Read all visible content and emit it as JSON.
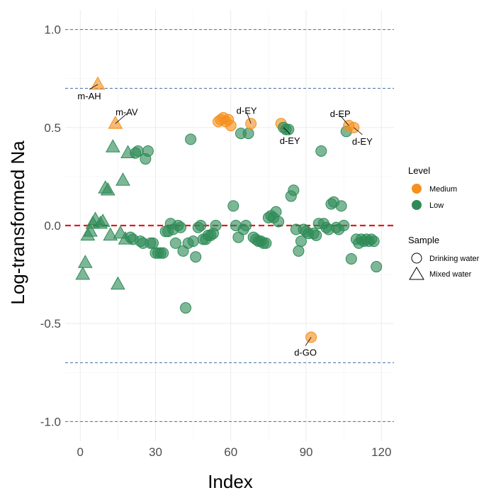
{
  "chart_data": {
    "type": "scatter",
    "title": "",
    "xlabel": "Index",
    "ylabel": "Log-transformed Na",
    "xlim": [
      -6,
      125
    ],
    "ylim": [
      -1.1,
      1.1
    ],
    "x_ticks": [
      0,
      30,
      60,
      90,
      120
    ],
    "x_tick_labels": [
      "0",
      "30",
      "60",
      "90",
      "120"
    ],
    "y_ticks": [
      -1.0,
      -0.5,
      0.0,
      0.5,
      1.0
    ],
    "y_tick_labels": [
      "-1.0",
      "-0.5",
      "0.0",
      "0.5",
      "1.0"
    ],
    "grid": true,
    "reference_lines": {
      "zero": {
        "y": 0.0,
        "color": "#e41a1c",
        "style": "dashed"
      },
      "thresholds": {
        "y": [
          1.0,
          0.7,
          -0.7,
          -1.0
        ],
        "color": "#4a6fa5",
        "style": "dashed"
      }
    },
    "legend_level": {
      "title": "Level",
      "placement": "right",
      "items": [
        {
          "label": "Medium",
          "color": "#f5901e"
        },
        {
          "label": "Low",
          "color": "#2e8b57"
        }
      ]
    },
    "legend_sample": {
      "title": "Sample",
      "placement": "right",
      "items": [
        {
          "label": "Drinking water",
          "shape": "circle"
        },
        {
          "label": "Mixed water",
          "shape": "triangle"
        }
      ]
    },
    "colors": {
      "Medium": "#f5901e",
      "Low": "#2e8b57"
    },
    "points": [
      {
        "x": 1,
        "y": -0.25,
        "level": "Low",
        "sample": "Mixed water"
      },
      {
        "x": 2,
        "y": -0.19,
        "level": "Low",
        "sample": "Mixed water"
      },
      {
        "x": 3,
        "y": -0.05,
        "level": "Low",
        "sample": "Mixed water"
      },
      {
        "x": 4,
        "y": -0.03,
        "level": "Low",
        "sample": "Mixed water"
      },
      {
        "x": 5,
        "y": 0.01,
        "level": "Low",
        "sample": "Mixed water"
      },
      {
        "x": 6,
        "y": 0.03,
        "level": "Low",
        "sample": "Mixed water"
      },
      {
        "x": 7,
        "y": 0.72,
        "level": "Medium",
        "sample": "Mixed water"
      },
      {
        "x": 8,
        "y": 0.01,
        "level": "Low",
        "sample": "Mixed water"
      },
      {
        "x": 9,
        "y": 0.02,
        "level": "Low",
        "sample": "Mixed water"
      },
      {
        "x": 10,
        "y": 0.19,
        "level": "Low",
        "sample": "Mixed water"
      },
      {
        "x": 11,
        "y": 0.18,
        "level": "Low",
        "sample": "Mixed water"
      },
      {
        "x": 12,
        "y": -0.05,
        "level": "Low",
        "sample": "Mixed water"
      },
      {
        "x": 13,
        "y": 0.4,
        "level": "Low",
        "sample": "Mixed water"
      },
      {
        "x": 14,
        "y": 0.52,
        "level": "Medium",
        "sample": "Mixed water"
      },
      {
        "x": 15,
        "y": -0.3,
        "level": "Low",
        "sample": "Mixed water"
      },
      {
        "x": 16,
        "y": -0.04,
        "level": "Low",
        "sample": "Mixed water"
      },
      {
        "x": 17,
        "y": 0.23,
        "level": "Low",
        "sample": "Mixed water"
      },
      {
        "x": 18,
        "y": -0.07,
        "level": "Low",
        "sample": "Mixed water"
      },
      {
        "x": 19,
        "y": 0.37,
        "level": "Low",
        "sample": "Mixed water"
      },
      {
        "x": 20,
        "y": -0.06,
        "level": "Low",
        "sample": "Drinking water"
      },
      {
        "x": 21,
        "y": -0.07,
        "level": "Low",
        "sample": "Drinking water"
      },
      {
        "x": 22,
        "y": 0.37,
        "level": "Low",
        "sample": "Drinking water"
      },
      {
        "x": 23,
        "y": 0.38,
        "level": "Low",
        "sample": "Drinking water"
      },
      {
        "x": 24,
        "y": -0.08,
        "level": "Low",
        "sample": "Drinking water"
      },
      {
        "x": 25,
        "y": -0.09,
        "level": "Low",
        "sample": "Drinking water"
      },
      {
        "x": 26,
        "y": 0.34,
        "level": "Low",
        "sample": "Drinking water"
      },
      {
        "x": 27,
        "y": 0.38,
        "level": "Low",
        "sample": "Drinking water"
      },
      {
        "x": 28,
        "y": -0.09,
        "level": "Low",
        "sample": "Drinking water"
      },
      {
        "x": 29,
        "y": -0.09,
        "level": "Low",
        "sample": "Drinking water"
      },
      {
        "x": 30,
        "y": -0.14,
        "level": "Low",
        "sample": "Drinking water"
      },
      {
        "x": 31,
        "y": -0.14,
        "level": "Low",
        "sample": "Drinking water"
      },
      {
        "x": 32,
        "y": -0.14,
        "level": "Low",
        "sample": "Drinking water"
      },
      {
        "x": 33,
        "y": -0.14,
        "level": "Low",
        "sample": "Drinking water"
      },
      {
        "x": 34,
        "y": -0.03,
        "level": "Low",
        "sample": "Drinking water"
      },
      {
        "x": 35,
        "y": -0.03,
        "level": "Low",
        "sample": "Drinking water"
      },
      {
        "x": 36,
        "y": 0.01,
        "level": "Low",
        "sample": "Drinking water"
      },
      {
        "x": 37,
        "y": -0.02,
        "level": "Low",
        "sample": "Drinking water"
      },
      {
        "x": 38,
        "y": -0.09,
        "level": "Low",
        "sample": "Drinking water"
      },
      {
        "x": 39,
        "y": 0.0,
        "level": "Low",
        "sample": "Drinking water"
      },
      {
        "x": 40,
        "y": -0.01,
        "level": "Low",
        "sample": "Drinking water"
      },
      {
        "x": 41,
        "y": -0.13,
        "level": "Low",
        "sample": "Drinking water"
      },
      {
        "x": 42,
        "y": -0.42,
        "level": "Low",
        "sample": "Drinking water"
      },
      {
        "x": 43,
        "y": -0.09,
        "level": "Low",
        "sample": "Drinking water"
      },
      {
        "x": 44,
        "y": 0.44,
        "level": "Low",
        "sample": "Drinking water"
      },
      {
        "x": 45,
        "y": -0.08,
        "level": "Low",
        "sample": "Drinking water"
      },
      {
        "x": 46,
        "y": -0.16,
        "level": "Low",
        "sample": "Drinking water"
      },
      {
        "x": 47,
        "y": -0.01,
        "level": "Low",
        "sample": "Drinking water"
      },
      {
        "x": 48,
        "y": 0.0,
        "level": "Low",
        "sample": "Drinking water"
      },
      {
        "x": 49,
        "y": -0.07,
        "level": "Low",
        "sample": "Drinking water"
      },
      {
        "x": 50,
        "y": -0.07,
        "level": "Low",
        "sample": "Drinking water"
      },
      {
        "x": 51,
        "y": -0.05,
        "level": "Low",
        "sample": "Drinking water"
      },
      {
        "x": 52,
        "y": -0.05,
        "level": "Low",
        "sample": "Drinking water"
      },
      {
        "x": 53,
        "y": -0.04,
        "level": "Low",
        "sample": "Drinking water"
      },
      {
        "x": 54,
        "y": 0.0,
        "level": "Low",
        "sample": "Drinking water"
      },
      {
        "x": 55,
        "y": 0.53,
        "level": "Medium",
        "sample": "Drinking water"
      },
      {
        "x": 56,
        "y": 0.54,
        "level": "Medium",
        "sample": "Drinking water"
      },
      {
        "x": 57,
        "y": 0.55,
        "level": "Medium",
        "sample": "Drinking water"
      },
      {
        "x": 58,
        "y": 0.53,
        "level": "Medium",
        "sample": "Drinking water"
      },
      {
        "x": 59,
        "y": 0.54,
        "level": "Medium",
        "sample": "Drinking water"
      },
      {
        "x": 60,
        "y": 0.51,
        "level": "Medium",
        "sample": "Drinking water"
      },
      {
        "x": 61,
        "y": 0.1,
        "level": "Low",
        "sample": "Drinking water"
      },
      {
        "x": 62,
        "y": 0.0,
        "level": "Low",
        "sample": "Drinking water"
      },
      {
        "x": 63,
        "y": -0.06,
        "level": "Low",
        "sample": "Drinking water"
      },
      {
        "x": 64,
        "y": 0.47,
        "level": "Low",
        "sample": "Drinking water"
      },
      {
        "x": 65,
        "y": -0.02,
        "level": "Low",
        "sample": "Drinking water"
      },
      {
        "x": 66,
        "y": 0.0,
        "level": "Low",
        "sample": "Drinking water"
      },
      {
        "x": 67,
        "y": 0.47,
        "level": "Low",
        "sample": "Drinking water"
      },
      {
        "x": 68,
        "y": 0.52,
        "level": "Medium",
        "sample": "Drinking water"
      },
      {
        "x": 69,
        "y": -0.06,
        "level": "Low",
        "sample": "Drinking water"
      },
      {
        "x": 70,
        "y": -0.07,
        "level": "Low",
        "sample": "Drinking water"
      },
      {
        "x": 71,
        "y": -0.08,
        "level": "Low",
        "sample": "Drinking water"
      },
      {
        "x": 72,
        "y": -0.08,
        "level": "Low",
        "sample": "Drinking water"
      },
      {
        "x": 73,
        "y": -0.09,
        "level": "Low",
        "sample": "Drinking water"
      },
      {
        "x": 74,
        "y": -0.09,
        "level": "Low",
        "sample": "Drinking water"
      },
      {
        "x": 75,
        "y": 0.04,
        "level": "Low",
        "sample": "Drinking water"
      },
      {
        "x": 76,
        "y": 0.05,
        "level": "Low",
        "sample": "Drinking water"
      },
      {
        "x": 77,
        "y": 0.04,
        "level": "Low",
        "sample": "Drinking water"
      },
      {
        "x": 78,
        "y": 0.07,
        "level": "Low",
        "sample": "Drinking water"
      },
      {
        "x": 79,
        "y": 0.02,
        "level": "Low",
        "sample": "Drinking water"
      },
      {
        "x": 80,
        "y": 0.52,
        "level": "Medium",
        "sample": "Drinking water"
      },
      {
        "x": 81,
        "y": 0.5,
        "level": "Low",
        "sample": "Drinking water"
      },
      {
        "x": 82,
        "y": 0.49,
        "level": "Low",
        "sample": "Drinking water"
      },
      {
        "x": 83,
        "y": 0.49,
        "level": "Low",
        "sample": "Drinking water"
      },
      {
        "x": 84,
        "y": 0.15,
        "level": "Low",
        "sample": "Drinking water"
      },
      {
        "x": 85,
        "y": 0.18,
        "level": "Low",
        "sample": "Drinking water"
      },
      {
        "x": 86,
        "y": -0.02,
        "level": "Low",
        "sample": "Drinking water"
      },
      {
        "x": 87,
        "y": -0.13,
        "level": "Low",
        "sample": "Drinking water"
      },
      {
        "x": 88,
        "y": -0.08,
        "level": "Low",
        "sample": "Drinking water"
      },
      {
        "x": 89,
        "y": -0.02,
        "level": "Low",
        "sample": "Drinking water"
      },
      {
        "x": 90,
        "y": -0.03,
        "level": "Low",
        "sample": "Drinking water"
      },
      {
        "x": 91,
        "y": -0.04,
        "level": "Low",
        "sample": "Drinking water"
      },
      {
        "x": 92,
        "y": -0.57,
        "level": "Medium",
        "sample": "Drinking water"
      },
      {
        "x": 93,
        "y": -0.04,
        "level": "Low",
        "sample": "Drinking water"
      },
      {
        "x": 94,
        "y": -0.05,
        "level": "Low",
        "sample": "Drinking water"
      },
      {
        "x": 95,
        "y": 0.01,
        "level": "Low",
        "sample": "Drinking water"
      },
      {
        "x": 96,
        "y": 0.38,
        "level": "Low",
        "sample": "Drinking water"
      },
      {
        "x": 97,
        "y": 0.01,
        "level": "Low",
        "sample": "Drinking water"
      },
      {
        "x": 98,
        "y": -0.01,
        "level": "Low",
        "sample": "Drinking water"
      },
      {
        "x": 99,
        "y": -0.02,
        "level": "Low",
        "sample": "Drinking water"
      },
      {
        "x": 100,
        "y": 0.11,
        "level": "Low",
        "sample": "Drinking water"
      },
      {
        "x": 101,
        "y": 0.12,
        "level": "Low",
        "sample": "Drinking water"
      },
      {
        "x": 102,
        "y": -0.01,
        "level": "Low",
        "sample": "Drinking water"
      },
      {
        "x": 103,
        "y": -0.02,
        "level": "Low",
        "sample": "Drinking water"
      },
      {
        "x": 104,
        "y": 0.1,
        "level": "Low",
        "sample": "Drinking water"
      },
      {
        "x": 105,
        "y": 0.0,
        "level": "Low",
        "sample": "Drinking water"
      },
      {
        "x": 106,
        "y": 0.48,
        "level": "Low",
        "sample": "Drinking water"
      },
      {
        "x": 107,
        "y": 0.51,
        "level": "Medium",
        "sample": "Drinking water"
      },
      {
        "x": 108,
        "y": -0.17,
        "level": "Low",
        "sample": "Drinking water"
      },
      {
        "x": 109,
        "y": 0.5,
        "level": "Medium",
        "sample": "Drinking water"
      },
      {
        "x": 110,
        "y": -0.07,
        "level": "Low",
        "sample": "Drinking water"
      },
      {
        "x": 111,
        "y": -0.09,
        "level": "Low",
        "sample": "Drinking water"
      },
      {
        "x": 112,
        "y": -0.07,
        "level": "Low",
        "sample": "Drinking water"
      },
      {
        "x": 113,
        "y": -0.08,
        "level": "Low",
        "sample": "Drinking water"
      },
      {
        "x": 114,
        "y": -0.07,
        "level": "Low",
        "sample": "Drinking water"
      },
      {
        "x": 115,
        "y": -0.08,
        "level": "Low",
        "sample": "Drinking water"
      },
      {
        "x": 116,
        "y": -0.07,
        "level": "Low",
        "sample": "Drinking water"
      },
      {
        "x": 117,
        "y": -0.08,
        "level": "Low",
        "sample": "Drinking water"
      },
      {
        "x": 118,
        "y": -0.21,
        "level": "Low",
        "sample": "Drinking water"
      }
    ],
    "annotations": [
      {
        "text": "m-AH",
        "x": 7,
        "y": 0.72
      },
      {
        "text": "m-AV",
        "x": 14,
        "y": 0.52
      },
      {
        "text": "d-EY",
        "x": 68,
        "y": 0.52
      },
      {
        "text": "d-EY",
        "x": 81,
        "y": 0.5
      },
      {
        "text": "d-EP",
        "x": 107,
        "y": 0.51
      },
      {
        "text": "d-EY",
        "x": 109,
        "y": 0.5
      },
      {
        "text": "d-GO",
        "x": 92,
        "y": -0.57
      }
    ]
  }
}
